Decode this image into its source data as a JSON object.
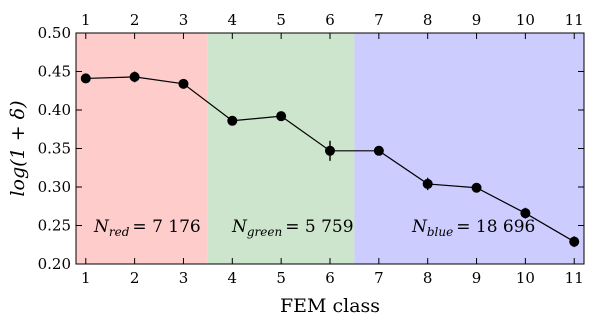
{
  "chart_data": {
    "type": "line",
    "x": [
      1,
      2,
      3,
      4,
      5,
      6,
      7,
      8,
      9,
      10,
      11
    ],
    "series": [
      {
        "values": [
          0.441,
          0.443,
          0.434,
          0.386,
          0.392,
          0.347,
          0.347,
          0.304,
          0.299,
          0.266,
          0.229
        ],
        "errors": [
          0.006,
          0.007,
          0.005,
          0.005,
          0.006,
          0.013,
          0.005,
          0.008,
          0.006,
          0.007,
          0.007
        ]
      }
    ],
    "xlabel": "FEM class",
    "ylabel": "log(1 + δ)",
    "xlim": [
      0.8,
      11.2
    ],
    "ylim": [
      0.2,
      0.5
    ],
    "xticks": [
      1,
      2,
      3,
      4,
      5,
      6,
      7,
      8,
      9,
      10,
      11
    ],
    "yticks": [
      0.2,
      0.25,
      0.3,
      0.35,
      0.4,
      0.45,
      0.5
    ],
    "ytick_labels": [
      "0.20",
      "0.25",
      "0.30",
      "0.35",
      "0.40",
      "0.45",
      "0.50"
    ],
    "grid": false,
    "regions": [
      {
        "from": 0.8,
        "to": 3.5,
        "color": "#ffcccc",
        "label_main": "N",
        "label_sub": "red",
        "label_value": "7 176"
      },
      {
        "from": 3.5,
        "to": 6.5,
        "color": "#cce5cc",
        "label_main": "N",
        "label_sub": "green",
        "label_value": "5 759"
      },
      {
        "from": 6.5,
        "to": 11.2,
        "color": "#ccccff",
        "label_main": "N",
        "label_sub": "blue",
        "label_value": "18 696"
      }
    ],
    "colors": {
      "line": "#000000",
      "marker": "#000000"
    }
  }
}
